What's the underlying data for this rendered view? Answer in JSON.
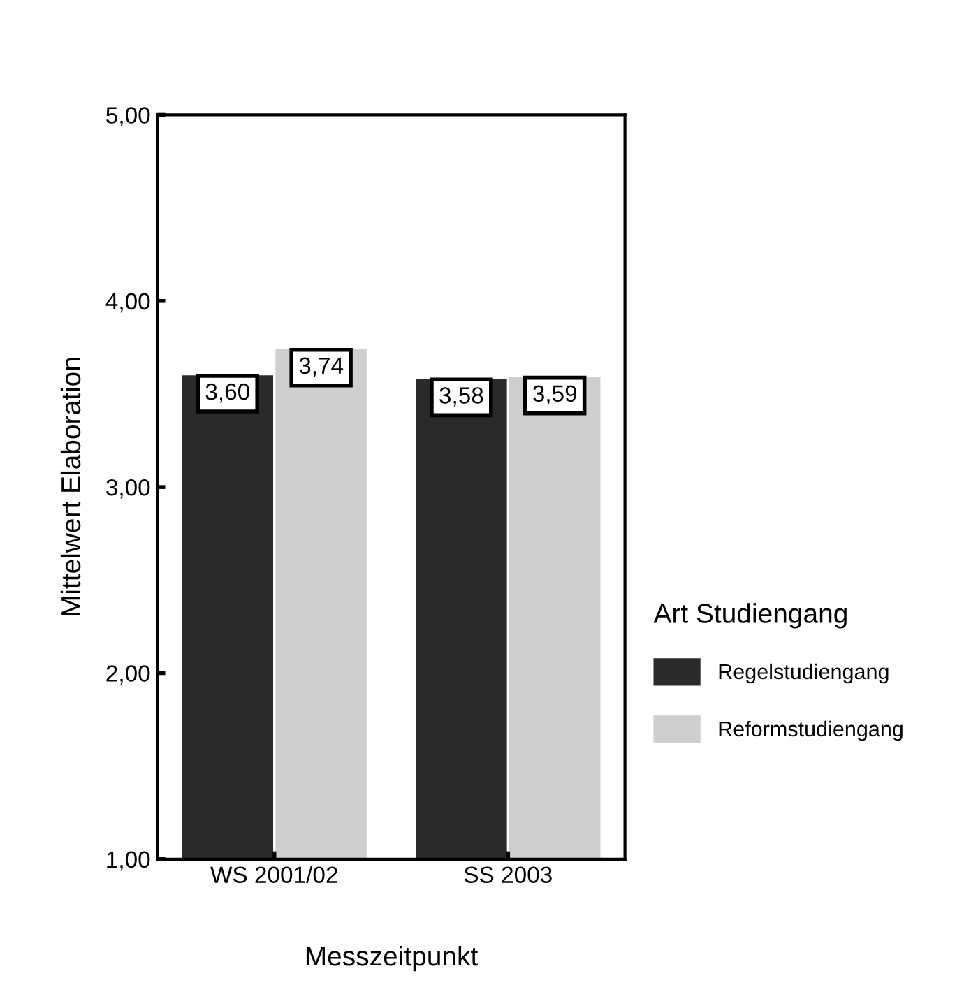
{
  "chart_data": {
    "type": "bar",
    "xlabel": "Messzeitpunkt",
    "ylabel": "Mittelwert Elaboration",
    "legend_title": "Art Studiengang",
    "categories": [
      "WS 2001/02",
      "SS 2003"
    ],
    "series": [
      {
        "name": "Regelstudiengang",
        "color": "#2a2a2a",
        "values": [
          3.6,
          3.58
        ],
        "value_labels": [
          "3,60",
          "3,58"
        ]
      },
      {
        "name": "Reformstudiengang",
        "color": "#cfcfcf",
        "values": [
          3.74,
          3.59
        ],
        "value_labels": [
          "3,74",
          "3,59"
        ]
      }
    ],
    "ylim": [
      1,
      5
    ],
    "yticks": [
      {
        "value": 1,
        "label": "1,00"
      },
      {
        "value": 2,
        "label": "2,00"
      },
      {
        "value": 3,
        "label": "3,00"
      },
      {
        "value": 4,
        "label": "4,00"
      },
      {
        "value": 5,
        "label": "5,00"
      }
    ],
    "grid": false,
    "legend": "right"
  }
}
